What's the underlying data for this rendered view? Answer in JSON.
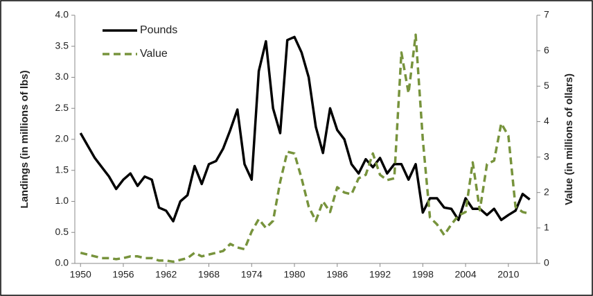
{
  "chart_data": {
    "type": "line",
    "x": [
      1950,
      1951,
      1952,
      1953,
      1954,
      1955,
      1956,
      1957,
      1958,
      1959,
      1960,
      1961,
      1962,
      1963,
      1964,
      1965,
      1966,
      1967,
      1968,
      1969,
      1970,
      1971,
      1972,
      1973,
      1974,
      1975,
      1976,
      1977,
      1978,
      1979,
      1980,
      1981,
      1982,
      1983,
      1984,
      1985,
      1986,
      1987,
      1988,
      1989,
      1990,
      1991,
      1992,
      1993,
      1994,
      1995,
      1996,
      1997,
      1998,
      1999,
      2000,
      2001,
      2002,
      2003,
      2004,
      2005,
      2006,
      2007,
      2008,
      2009,
      2010,
      2011,
      2012,
      2013
    ],
    "series": [
      {
        "name": "Pounds",
        "color": "#000000",
        "dash": false,
        "values": [
          2.1,
          1.9,
          1.7,
          1.55,
          1.4,
          1.2,
          1.35,
          1.45,
          1.25,
          1.4,
          1.35,
          0.9,
          0.85,
          0.68,
          1.0,
          1.1,
          1.57,
          1.28,
          1.6,
          1.65,
          1.85,
          2.15,
          2.48,
          1.6,
          1.35,
          3.1,
          3.58,
          2.5,
          2.1,
          3.6,
          3.65,
          3.4,
          3.0,
          2.2,
          1.78,
          2.5,
          2.15,
          2.0,
          1.6,
          1.45,
          1.68,
          1.55,
          1.7,
          1.45,
          1.6,
          1.6,
          1.35,
          1.6,
          0.82,
          1.05,
          1.05,
          0.9,
          0.88,
          0.7,
          1.05,
          0.88,
          0.88,
          0.78,
          0.88,
          0.7,
          0.78,
          0.85,
          1.12,
          1.03
        ]
      },
      {
        "name": "Value",
        "color": "#77933c",
        "dash": true,
        "axis": "y2",
        "values": [
          0.3,
          0.25,
          0.2,
          0.15,
          0.15,
          0.12,
          0.15,
          0.2,
          0.2,
          0.15,
          0.15,
          0.08,
          0.08,
          0.05,
          0.1,
          0.15,
          0.3,
          0.2,
          0.25,
          0.3,
          0.35,
          0.55,
          0.45,
          0.4,
          0.9,
          1.25,
          1.0,
          1.2,
          2.3,
          3.15,
          3.1,
          2.4,
          1.6,
          1.2,
          1.75,
          1.45,
          2.15,
          2.0,
          1.95,
          2.4,
          2.5,
          3.1,
          2.5,
          2.35,
          2.4,
          5.95,
          4.8,
          6.45,
          3.5,
          1.3,
          1.1,
          0.8,
          1.1,
          1.35,
          1.45,
          2.85,
          1.5,
          2.8,
          2.9,
          3.95,
          3.6,
          1.6,
          1.45,
          1.4
        ]
      }
    ],
    "y_label": "Landings (in millions of lbs)",
    "y2_label": "Value (in millions of ollars)",
    "xlim": [
      1949.2,
      2014
    ],
    "xticks": [
      1950,
      1956,
      1962,
      1968,
      1974,
      1980,
      1986,
      1992,
      1998,
      2004,
      2010
    ],
    "ylim": [
      0,
      4
    ],
    "yticks": [
      {
        "value": 0,
        "label": "0.0"
      },
      {
        "value": 0.5,
        "label": "0.5"
      },
      {
        "value": 1,
        "label": "1.0"
      },
      {
        "value": 1.5,
        "label": "1.5"
      },
      {
        "value": 2,
        "label": "2.0"
      },
      {
        "value": 2.5,
        "label": "2.5"
      },
      {
        "value": 3,
        "label": "3.0"
      },
      {
        "value": 3.5,
        "label": "3.5"
      },
      {
        "value": 4,
        "label": "4.0"
      }
    ],
    "y2lim": [
      0,
      7
    ],
    "y2ticks": [
      0,
      1,
      2,
      3,
      4,
      5,
      6,
      7
    ],
    "legend": "top-left"
  }
}
